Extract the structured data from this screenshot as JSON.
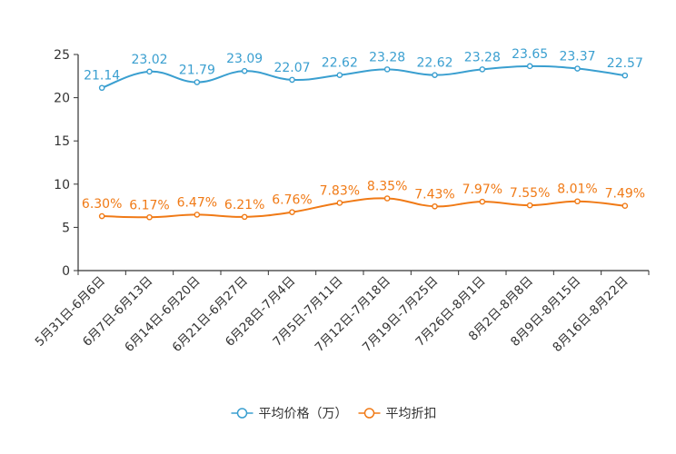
{
  "chart_data": {
    "type": "line",
    "title": "",
    "xlabel": "",
    "ylabel": "",
    "ylim": [
      0,
      25
    ],
    "yticks": [
      "0",
      "5",
      "10",
      "15",
      "20",
      "25"
    ],
    "grid": false,
    "legend_position": "bottom",
    "categories": [
      "5月31日-6月6日",
      "6月7日-6月13日",
      "6月14日-6月20日",
      "6月21日-6月27日",
      "6月28日-7月4日",
      "7月5日-7月11日",
      "7月12日-7月18日",
      "7月19日-7月25日",
      "7月26日-8月1日",
      "8月2日-8月8日",
      "8月9日-8月15日",
      "8月16日-8月22日"
    ],
    "series": [
      {
        "name": "平均价格（万）",
        "color": "#3a9fd0",
        "values": [
          21.14,
          23.02,
          21.79,
          23.09,
          22.07,
          22.62,
          23.28,
          22.62,
          23.28,
          23.65,
          23.37,
          22.57
        ],
        "labels": [
          "21.14",
          "23.02",
          "21.79",
          "23.09",
          "22.07",
          "22.62",
          "23.28",
          "22.62",
          "23.28",
          "23.65",
          "23.37",
          "22.57"
        ]
      },
      {
        "name": "平均折扣",
        "color": "#f07a16",
        "values": [
          6.3,
          6.17,
          6.47,
          6.21,
          6.76,
          7.83,
          8.35,
          7.43,
          7.97,
          7.55,
          8.01,
          7.49
        ],
        "labels": [
          "6.30%",
          "6.17%",
          "6.47%",
          "6.21%",
          "6.76%",
          "7.83%",
          "8.35%",
          "7.43%",
          "7.97%",
          "7.55%",
          "8.01%",
          "7.49%"
        ]
      }
    ]
  }
}
